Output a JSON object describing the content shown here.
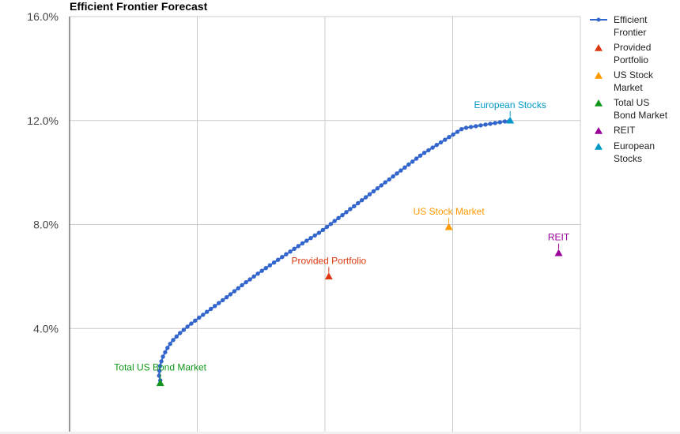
{
  "chart_data": {
    "type": "scatter",
    "title": "Efficient Frontier Forecast",
    "xlabel": "",
    "ylabel": "",
    "xlim": [
      0,
      40
    ],
    "ylim": [
      0,
      16
    ],
    "x_ticks": [
      10,
      20,
      30
    ],
    "y_ticks": [
      {
        "value": 4,
        "label": "4.0%"
      },
      {
        "value": 8,
        "label": "8.0%"
      },
      {
        "value": 12,
        "label": "12.0%"
      },
      {
        "value": 16,
        "label": "16.0%"
      }
    ],
    "grid": true,
    "legend_position": "right",
    "series": [
      {
        "name": "Efficient Frontier",
        "kind": "line-markers",
        "color": "#3366cc",
        "points": [
          [
            7.1,
            2.0
          ],
          [
            7.0,
            2.2
          ],
          [
            7.1,
            2.6
          ],
          [
            7.3,
            2.9
          ],
          [
            7.6,
            3.2
          ],
          [
            8.0,
            3.5
          ],
          [
            8.6,
            3.8
          ],
          [
            9.3,
            4.1
          ],
          [
            10.1,
            4.4
          ],
          [
            11.2,
            4.8
          ],
          [
            12.3,
            5.2
          ],
          [
            13.6,
            5.7
          ],
          [
            15.0,
            6.2
          ],
          [
            16.5,
            6.7
          ],
          [
            18.0,
            7.2
          ],
          [
            19.6,
            7.7
          ],
          [
            21.2,
            8.3
          ],
          [
            22.8,
            8.9
          ],
          [
            24.4,
            9.5
          ],
          [
            26.0,
            10.1
          ],
          [
            27.6,
            10.7
          ],
          [
            29.2,
            11.2
          ],
          [
            30.8,
            11.7
          ],
          [
            34.5,
            12.0
          ]
        ]
      },
      {
        "name": "Provided Portfolio",
        "kind": "point",
        "color": "#dc3912",
        "x": 20.3,
        "y": 6.0,
        "label": "Provided Portfolio"
      },
      {
        "name": "US Stock Market",
        "kind": "point",
        "color": "#ff9900",
        "x": 29.7,
        "y": 7.9,
        "label": "US Stock Market"
      },
      {
        "name": "Total US Bond Market",
        "kind": "point",
        "color": "#109618",
        "x": 7.1,
        "y": 1.9,
        "label": "Total US Bond Market"
      },
      {
        "name": "REIT",
        "kind": "point",
        "color": "#990099",
        "x": 38.3,
        "y": 6.9,
        "label": "REIT"
      },
      {
        "name": "European Stocks",
        "kind": "point",
        "color": "#0099c6",
        "x": 34.5,
        "y": 12.0,
        "label": "European Stocks"
      }
    ]
  }
}
